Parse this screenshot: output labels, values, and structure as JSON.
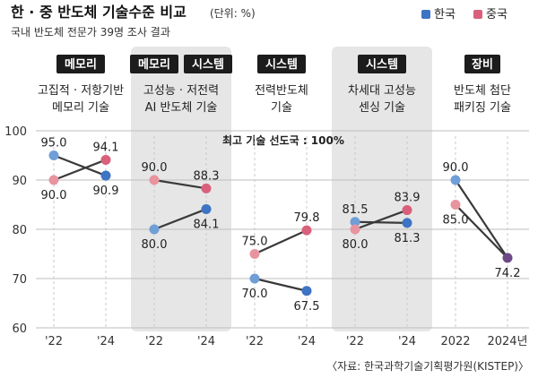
{
  "title": "한 · 중 반도체 기술수준 비교",
  "unit": "(단위: %)",
  "subtitle": "국내 반도체 전문가 39명 조사 결과",
  "source": "〈자료: 한국과학기술기획평가원(KISTEP)〉",
  "colors": {
    "korea": "#3d74c4",
    "china": "#d9607a",
    "overlap": "#6e4a86",
    "korea_light": "#6f9fd6",
    "china_light": "#e8949f",
    "tag_bg": "#1c1c1c",
    "tag_text": "#ffffff",
    "shade": "#e6e6e6",
    "line": "#3a3a3a",
    "grid": "#bdbdbd"
  },
  "chart_data": {
    "type": "line",
    "ylim": [
      60,
      100
    ],
    "yticks": [
      "60",
      "70",
      "80",
      "90",
      "100"
    ],
    "legend": {
      "position": "top-right",
      "entries": [
        "한국",
        "중국"
      ]
    },
    "annotation": "최고 기술 선도국 : 100%",
    "groups": [
      {
        "tags": [
          "메모리"
        ],
        "label_lines": [
          "고집적 · 저항기반",
          "메모리 기술"
        ],
        "x": [
          "'22",
          "'24"
        ],
        "shaded": false,
        "korea": [
          95.0,
          90.9
        ],
        "china": [
          90.0,
          94.1
        ],
        "korea_labels": [
          "95.0",
          "90.9"
        ],
        "china_labels": [
          "90.0",
          "94.1"
        ]
      },
      {
        "tags": [
          "메모리",
          "시스템"
        ],
        "label_lines": [
          "고성능 · 저전력",
          "AI 반도체 기술"
        ],
        "x": [
          "'22",
          "'24"
        ],
        "shaded": true,
        "korea": [
          80.0,
          84.1
        ],
        "china": [
          90.0,
          88.3
        ],
        "korea_labels": [
          "80.0",
          "84.1"
        ],
        "china_labels": [
          "90.0",
          "88.3"
        ]
      },
      {
        "tags": [
          "시스템"
        ],
        "label_lines": [
          "전력반도체",
          "기술"
        ],
        "x": [
          "'22",
          "'24"
        ],
        "shaded": false,
        "korea": [
          70.0,
          67.5
        ],
        "china": [
          75.0,
          79.8
        ],
        "korea_labels": [
          "70.0",
          "67.5"
        ],
        "china_labels": [
          "75.0",
          "79.8"
        ]
      },
      {
        "tags": [
          "시스템"
        ],
        "label_lines": [
          "차세대 고성능",
          "센싱 기술"
        ],
        "x": [
          "'22",
          "'24"
        ],
        "shaded": true,
        "korea": [
          81.5,
          81.3
        ],
        "china": [
          80.0,
          83.9
        ],
        "korea_labels": [
          "81.5",
          "81.3"
        ],
        "china_labels": [
          "80.0",
          "83.9"
        ]
      },
      {
        "tags": [
          "장비"
        ],
        "label_lines": [
          "반도체 첨단",
          "패키징 기술"
        ],
        "x": [
          "2022",
          "2024년"
        ],
        "shaded": false,
        "korea": [
          90.0,
          74.2
        ],
        "china": [
          85.0,
          74.2
        ],
        "korea_labels": [
          "90.0",
          ""
        ],
        "china_labels": [
          "85.0",
          "74.2"
        ]
      }
    ]
  }
}
